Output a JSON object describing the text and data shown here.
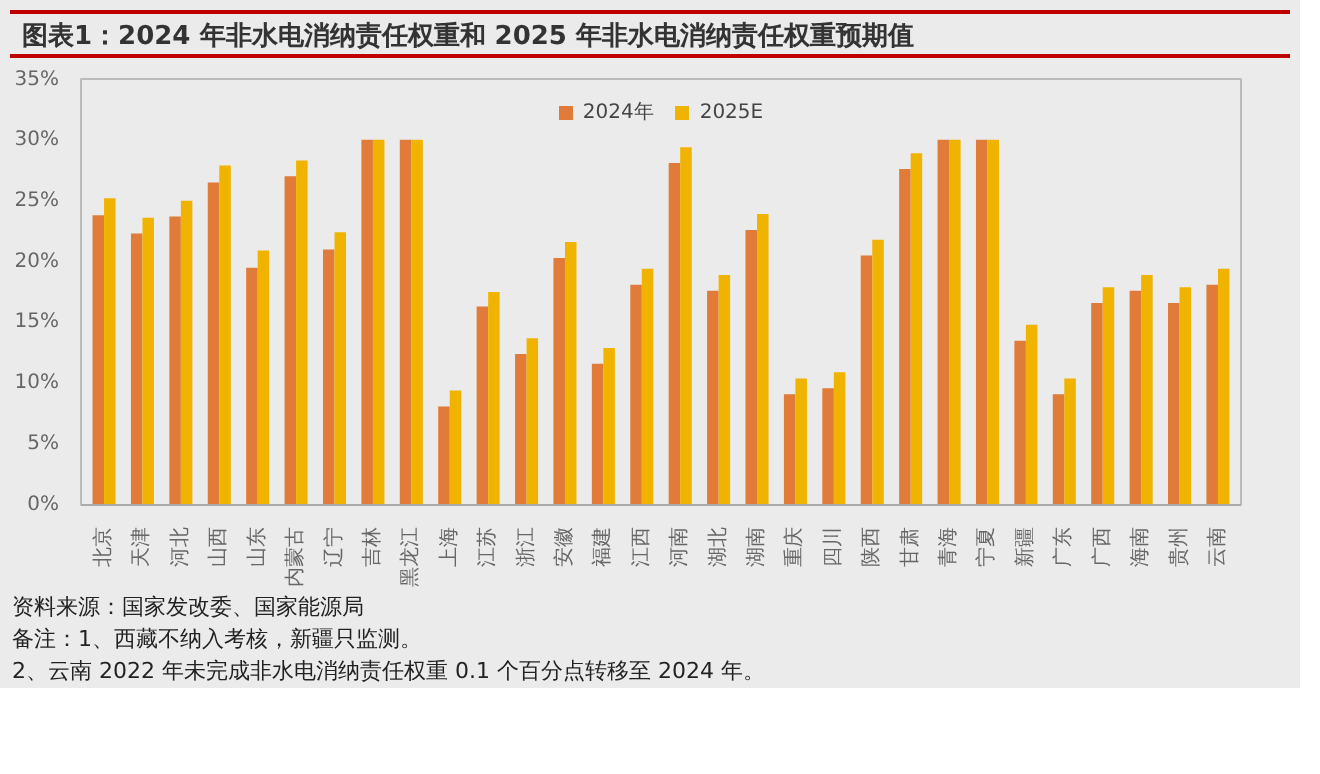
{
  "chart_data": {
    "type": "bar",
    "title": "图表1：2024 年非水电消纳责任权重和 2025 年非水电消纳责任权重预期值",
    "categories": [
      "北京",
      "天津",
      "河北",
      "山西",
      "山东",
      "内蒙古",
      "辽宁",
      "吉林",
      "黑龙江",
      "上海",
      "江苏",
      "浙江",
      "安徽",
      "福建",
      "江西",
      "河南",
      "湖北",
      "湖南",
      "重庆",
      "四川",
      "陕西",
      "甘肃",
      "青海",
      "宁夏",
      "新疆",
      "广东",
      "广西",
      "海南",
      "贵州",
      "云南"
    ],
    "series": [
      {
        "name": "2024年",
        "color": "#e07b39",
        "values": [
          23.8,
          22.3,
          23.7,
          26.5,
          19.5,
          27.0,
          21.0,
          30,
          30,
          8.1,
          16.3,
          12.4,
          20.3,
          11.6,
          18.1,
          28.1,
          17.6,
          22.6,
          9.1,
          9.6,
          20.5,
          27.6,
          30,
          30,
          13.5,
          9.1,
          16.6,
          17.6,
          16.6,
          18.1
        ]
      },
      {
        "name": "2025E",
        "color": "#f0b400",
        "values": [
          25.2,
          23.6,
          25.0,
          27.9,
          20.9,
          28.3,
          22.4,
          30,
          30,
          9.4,
          17.5,
          13.7,
          21.6,
          12.9,
          19.4,
          29.4,
          18.9,
          23.9,
          10.4,
          10.9,
          21.8,
          28.9,
          30,
          30,
          14.8,
          10.4,
          17.9,
          18.9,
          17.9,
          19.4
        ]
      }
    ],
    "ylim": [
      0,
      35
    ],
    "yticks": [
      {
        "value": 0,
        "label": "0%"
      },
      {
        "value": 5,
        "label": "5%"
      },
      {
        "value": 10,
        "label": "10%"
      },
      {
        "value": 15,
        "label": "15%"
      },
      {
        "value": 20,
        "label": "20%"
      },
      {
        "value": 25,
        "label": "25%"
      },
      {
        "value": 30,
        "label": "30%"
      },
      {
        "value": 35,
        "label": "35%"
      }
    ],
    "grid": false,
    "legend": "top",
    "annotations": [
      "资料来源：国家发改委、国家能源局",
      "备注：1、西藏不纳入考核，新疆只监测。",
      "2、云南 2022 年未完成非水电消纳责任权重 0.1 个百分点转移至 2024 年。"
    ]
  }
}
